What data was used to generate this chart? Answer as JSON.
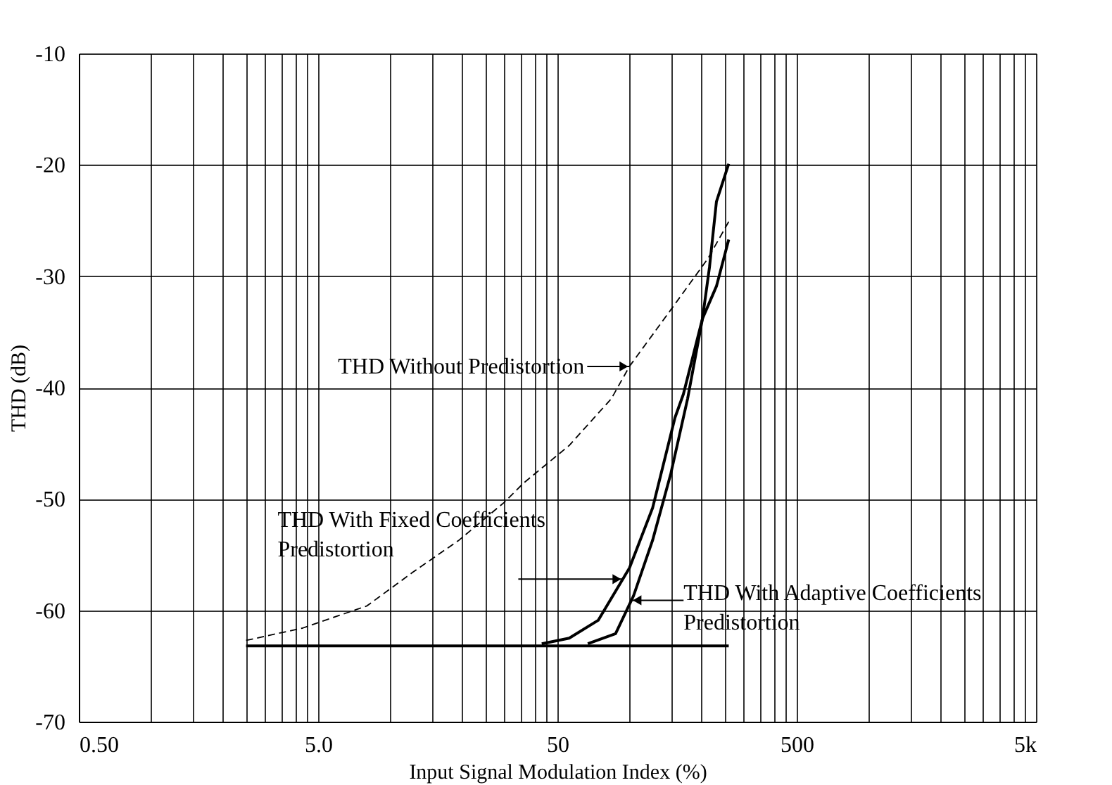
{
  "chart_data": {
    "type": "line",
    "xlabel": "Input Signal Modulation Index (%)",
    "ylabel": "THD (dB)",
    "log": "x",
    "xlim": [
      0.5,
      5000
    ],
    "ylim": [
      -70,
      -10
    ],
    "xticks": [
      {
        "value": 0.5,
        "label": "0.50"
      },
      {
        "value": 1,
        "label": null
      },
      {
        "value": 1.5,
        "label": null
      },
      {
        "value": 2,
        "label": null
      },
      {
        "value": 2.5,
        "label": null
      },
      {
        "value": 3,
        "label": null
      },
      {
        "value": 3.5,
        "label": null
      },
      {
        "value": 4,
        "label": null
      },
      {
        "value": 4.5,
        "label": null
      },
      {
        "value": 5,
        "label": "5.0"
      },
      {
        "value": 10,
        "label": null
      },
      {
        "value": 15,
        "label": null
      },
      {
        "value": 20,
        "label": null
      },
      {
        "value": 25,
        "label": null
      },
      {
        "value": 30,
        "label": null
      },
      {
        "value": 35,
        "label": null
      },
      {
        "value": 40,
        "label": null
      },
      {
        "value": 45,
        "label": null
      },
      {
        "value": 50,
        "label": "50"
      },
      {
        "value": 100,
        "label": null
      },
      {
        "value": 150,
        "label": null
      },
      {
        "value": 200,
        "label": null
      },
      {
        "value": 250,
        "label": null
      },
      {
        "value": 300,
        "label": null
      },
      {
        "value": 350,
        "label": null
      },
      {
        "value": 400,
        "label": null
      },
      {
        "value": 450,
        "label": null
      },
      {
        "value": 500,
        "label": "500"
      },
      {
        "value": 1000,
        "label": null
      },
      {
        "value": 1500,
        "label": null
      },
      {
        "value": 2000,
        "label": null
      },
      {
        "value": 2500,
        "label": null
      },
      {
        "value": 3000,
        "label": null
      },
      {
        "value": 3500,
        "label": null
      },
      {
        "value": 4000,
        "label": null
      },
      {
        "value": 4500,
        "label": null
      },
      {
        "value": 5000,
        "label": "5k"
      }
    ],
    "yticks": [
      -70,
      -60,
      -50,
      -40,
      -30,
      -20,
      -10
    ],
    "grid": true,
    "legend": false,
    "marker": "none",
    "series": [
      {
        "color": "#000000",
        "line_style": "dashed",
        "x": [
          2.5,
          4.3,
          8,
          12.4,
          19.4,
          30,
          36,
          56,
          84,
          100,
          155,
          213,
          260
        ],
        "values": [
          -62.7,
          -61.6,
          -59.6,
          -56.6,
          -53.7,
          -50.3,
          -48.6,
          -45.2,
          -41.0,
          -38.1,
          -32.5,
          -28.4,
          -25.1
        ]
      },
      {
        "color": "#000000",
        "line_style": "solid",
        "x": [
          2.5,
          260
        ],
        "values": [
          -63.2,
          -63.2
        ]
      },
      {
        "color": "#000000",
        "line_style": "solid",
        "x": [
          43,
          56,
          74,
          100,
          125,
          155,
          168,
          202,
          231,
          260
        ],
        "values": [
          -63.0,
          -62.5,
          -60.9,
          -56.2,
          -50.8,
          -42.7,
          -40.6,
          -33.8,
          -30.9,
          -26.7
        ]
      },
      {
        "color": "#000000",
        "line_style": "solid",
        "x": [
          67,
          87.5,
          104,
          125,
          149,
          175,
          202,
          216,
          231,
          260
        ],
        "values": [
          -63.0,
          -62.1,
          -58.7,
          -53.7,
          -47.7,
          -41.0,
          -33.8,
          -29.2,
          -23.3,
          -19.9
        ]
      }
    ],
    "annotations": [
      {
        "text": "THD Without Predistortion",
        "x": 100,
        "y": -38.1
      },
      {
        "text": "THD With Fixed Coefficients\nPredistortion",
        "x": 93.5,
        "y": -57.2
      },
      {
        "text": "THD With Adaptive Coefficients\nPredistortion",
        "x": 102,
        "y": -59.1
      }
    ]
  }
}
